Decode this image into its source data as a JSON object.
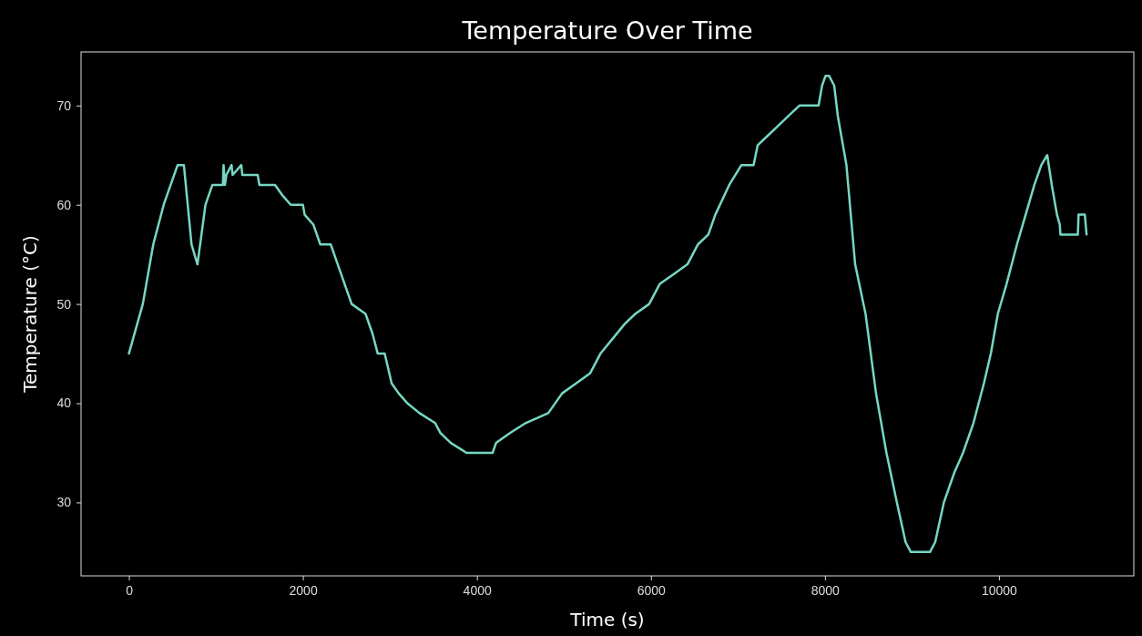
{
  "chart_data": {
    "type": "line",
    "title": "Temperature Over Time",
    "xlabel": "Time (s)",
    "ylabel": "Temperature (°C)",
    "xlim": [
      -550,
      11550
    ],
    "xticks": [
      0,
      2000,
      4000,
      6000,
      8000,
      10000
    ],
    "ylim": [
      22.6,
      75.4
    ],
    "yticks": [
      30,
      40,
      50,
      60,
      70
    ],
    "grid": false,
    "marker": "none",
    "line_style": "solid",
    "series": [
      {
        "color": "#76d7c4",
        "x": [
          0,
          160,
          280,
          400,
          480,
          560,
          632,
          720,
          788,
          880,
          960,
          1060,
          1080,
          1088,
          1104,
          1120,
          1180,
          1192,
          1292,
          1304,
          1480,
          1500,
          1680,
          1760,
          1860,
          2000,
          2020,
          2120,
          2200,
          2320,
          2400,
          2480,
          2560,
          2720,
          2800,
          2860,
          2940,
          3020,
          3100,
          3200,
          3340,
          3520,
          3580,
          3700,
          3880,
          4180,
          4220,
          4380,
          4560,
          4820,
          4980,
          5140,
          5300,
          5420,
          5700,
          5820,
          5980,
          6100,
          6260,
          6420,
          6540,
          6660,
          6740,
          6900,
          7040,
          7180,
          7227,
          7347,
          7467,
          7587,
          7707,
          7927,
          7967,
          8007,
          8047,
          8107,
          8147,
          8247,
          8347,
          8467,
          8587,
          8707,
          8827,
          8927,
          8987,
          9207,
          9267,
          9367,
          9487,
          9587,
          9707,
          9827,
          9907,
          9987,
          10087,
          10207,
          10307,
          10407,
          10487,
          10555,
          10607,
          10667,
          10699,
          10707,
          10907,
          10915,
          10987,
          11007
        ],
        "values": [
          45,
          50,
          56,
          60,
          62,
          64,
          64,
          56,
          54,
          60,
          62,
          62,
          62,
          64,
          62,
          63,
          64,
          63,
          64,
          63,
          63,
          62,
          62,
          61,
          60,
          60,
          59,
          58,
          56,
          56,
          54,
          52,
          50,
          49,
          47,
          45,
          45,
          42,
          41,
          40,
          39,
          38,
          37,
          36,
          35,
          35,
          36,
          37,
          38,
          39,
          41,
          42,
          43,
          45,
          48,
          49,
          50,
          52,
          53,
          54,
          56,
          57,
          59,
          62,
          64,
          64,
          66,
          67,
          68,
          69,
          70,
          70,
          72,
          73,
          73,
          72,
          69,
          64,
          54,
          49,
          41,
          35,
          30,
          26,
          25,
          25,
          26,
          30,
          33,
          35,
          38,
          42,
          45,
          49,
          52,
          56,
          59,
          62,
          64,
          65,
          62,
          59,
          58,
          57,
          57,
          59,
          59,
          57
        ]
      }
    ]
  }
}
